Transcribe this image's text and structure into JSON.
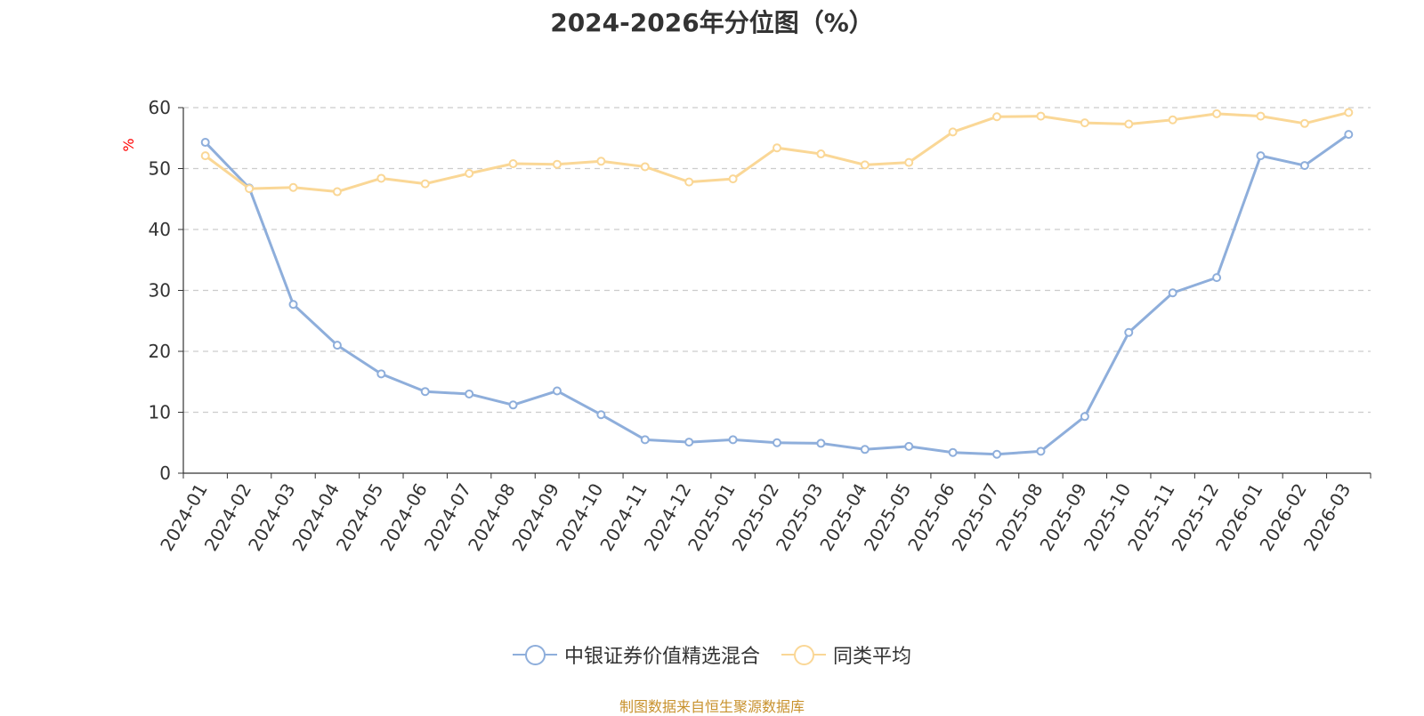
{
  "title": "2024-2026年分位图（%）",
  "y_unit": "%",
  "source": "制图数据来自恒生聚源数据库",
  "colors": {
    "series1": "#8eaedb",
    "series2": "#fad796",
    "source": "#c8922e",
    "y_unit": "#ff0000",
    "grid": "#cccccc",
    "axis": "#333333"
  },
  "chart_data": {
    "type": "line",
    "x": [
      "2024-01",
      "2024-02",
      "2024-03",
      "2024-04",
      "2024-05",
      "2024-06",
      "2024-07",
      "2024-08",
      "2024-09",
      "2024-10",
      "2024-11",
      "2024-12",
      "2025-01",
      "2025-02",
      "2025-03",
      "2025-04",
      "2025-05",
      "2025-06",
      "2025-07",
      "2025-08",
      "2025-09",
      "2025-10",
      "2025-11",
      "2025-12",
      "2026-01",
      "2026-02",
      "2026-03"
    ],
    "series": [
      {
        "name": "中银证券价值精选混合",
        "values": [
          54.3,
          46.8,
          27.7,
          21.0,
          16.3,
          13.4,
          13.0,
          11.2,
          13.5,
          9.6,
          5.5,
          5.1,
          5.5,
          5.0,
          4.9,
          3.9,
          4.4,
          3.4,
          3.1,
          3.6,
          9.3,
          23.1,
          29.6,
          32.1,
          52.1,
          50.5,
          55.6
        ]
      },
      {
        "name": "同类平均",
        "values": [
          52.1,
          46.7,
          46.9,
          46.2,
          48.4,
          47.5,
          49.2,
          50.8,
          50.7,
          51.2,
          50.3,
          47.8,
          48.3,
          53.4,
          52.4,
          50.6,
          51.0,
          56.0,
          58.5,
          58.6,
          57.5,
          57.3,
          58.0,
          59.0,
          58.6,
          57.4,
          59.2
        ]
      }
    ],
    "yticks": [
      0,
      10,
      20,
      30,
      40,
      50,
      60
    ],
    "ylim": [
      0,
      60
    ],
    "grid": true,
    "legend_position": "bottom-center"
  }
}
